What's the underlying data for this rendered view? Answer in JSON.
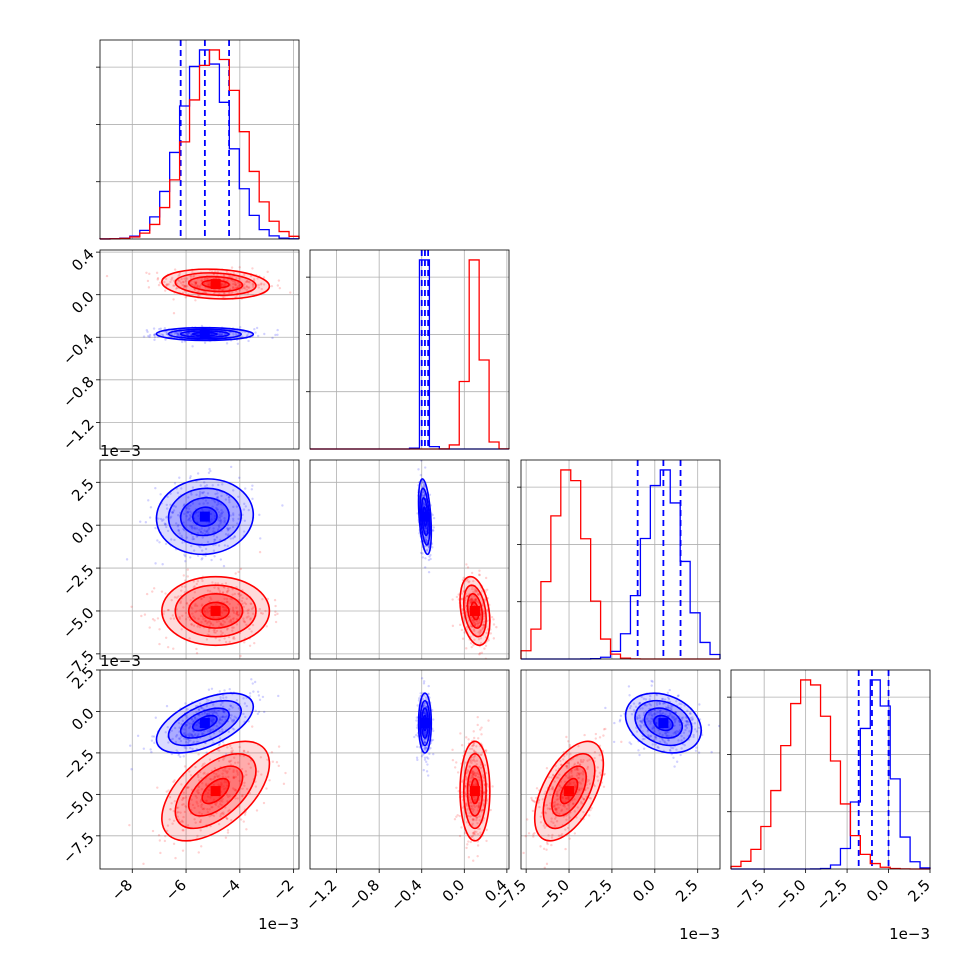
{
  "chart_data": {
    "type": "corner",
    "colors": {
      "blue": "#0000ff",
      "red": "#ff0000"
    },
    "series": [
      {
        "color": "blue",
        "params": [
          {
            "mean": -0.0053,
            "sd": 0.0009,
            "quantiles": [
              -0.0062,
              -0.0053,
              -0.0044
            ]
          },
          {
            "mean": -0.37,
            "sd": 0.03,
            "quantiles": [
              -0.4,
              -0.37,
              -0.34
            ]
          },
          {
            "mean": 0.0005,
            "sd": 0.0011,
            "quantiles": [
              -0.001,
              0.0005,
              0.0015
            ]
          },
          {
            "mean": -0.0007,
            "sd": 0.0009,
            "quantiles": [
              -0.0018,
              -0.001,
              0.0
            ]
          }
        ],
        "corr": [
          [
            0,
            1,
            -0.03
          ],
          [
            0,
            2,
            0.05
          ],
          [
            0,
            3,
            0.55
          ],
          [
            1,
            2,
            -0.4
          ],
          [
            1,
            3,
            0.0
          ],
          [
            2,
            3,
            -0.25
          ]
        ]
      },
      {
        "color": "red",
        "params": [
          {
            "mean": -0.0049,
            "sd": 0.001
          },
          {
            "mean": 0.1,
            "sd": 0.07
          },
          {
            "mean": -0.005,
            "sd": 0.001
          },
          {
            "mean": -0.0048,
            "sd": 0.0015
          }
        ],
        "corr": [
          [
            0,
            1,
            -0.15
          ],
          [
            0,
            2,
            0.0
          ],
          [
            0,
            3,
            0.55
          ],
          [
            1,
            2,
            -0.3
          ],
          [
            1,
            3,
            0.0
          ],
          [
            2,
            3,
            0.55
          ]
        ]
      }
    ],
    "axes": [
      {
        "range": [
          -0.0092,
          -0.0018
        ],
        "ticks": [
          -0.008,
          -0.006,
          -0.004,
          -0.002
        ],
        "tick_labels": [
          "−8",
          "−6",
          "−4",
          "−2"
        ],
        "offset_label": "1e−3"
      },
      {
        "range": [
          -1.45,
          0.42
        ],
        "ticks": [
          -1.2,
          -0.8,
          -0.4,
          0.0,
          0.4
        ],
        "tick_labels": [
          "−1.2",
          "−0.8",
          "−0.4",
          "0.0",
          "0.4"
        ],
        "offset_label": ""
      },
      {
        "range": [
          -0.0078,
          0.0038
        ],
        "ticks": [
          -0.0075,
          -0.005,
          -0.0025,
          0.0,
          0.0025
        ],
        "tick_labels": [
          "−7.5",
          "−5.0",
          "−2.5",
          "0.0",
          "2.5"
        ],
        "offset_label": "1e−3"
      },
      {
        "range": [
          -0.0095,
          0.0025
        ],
        "ticks": [
          -0.0075,
          -0.005,
          -0.0025,
          0.0,
          0.0025
        ],
        "tick_labels": [
          "−7.5",
          "−5.0",
          "−2.5",
          "0.0",
          "2.5"
        ],
        "offset_label": "1e−3"
      }
    ],
    "contour_levels": 4,
    "grid": true
  }
}
